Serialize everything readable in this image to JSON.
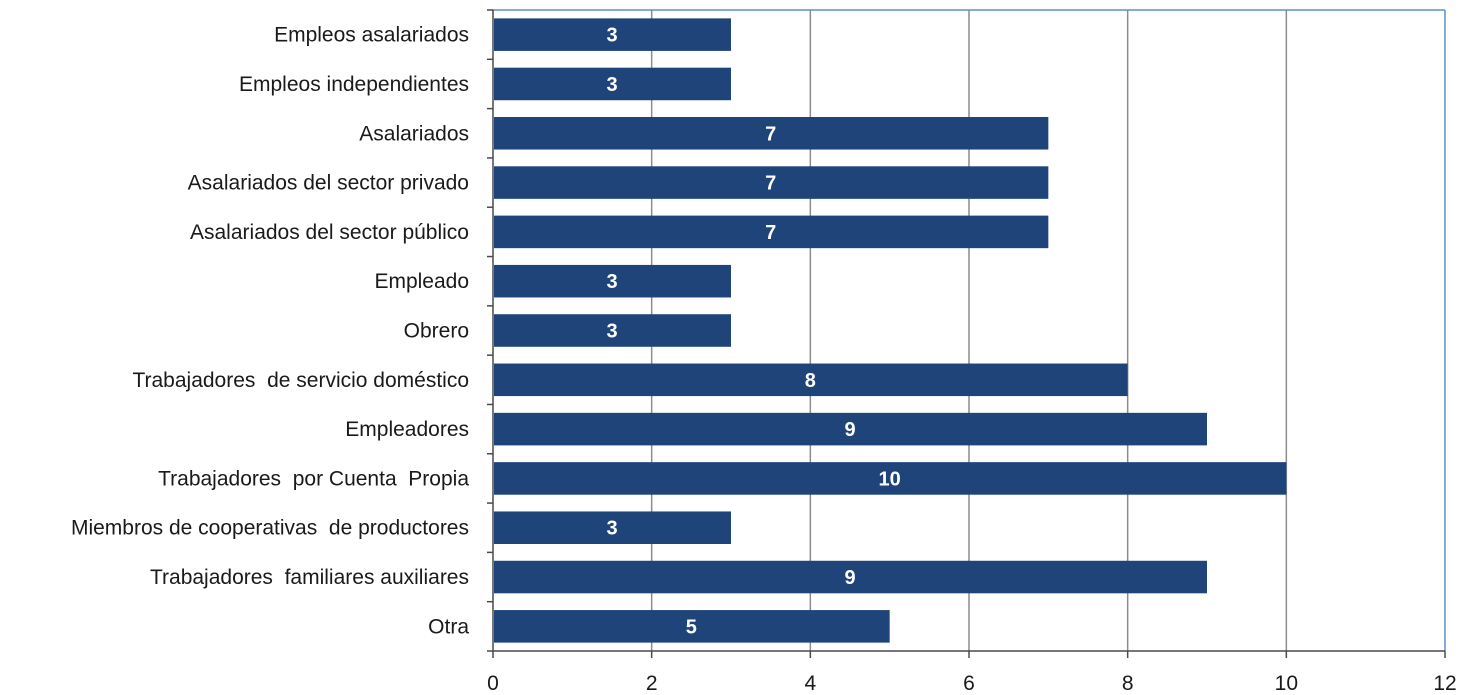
{
  "chart_data": {
    "type": "bar",
    "orientation": "horizontal",
    "categories": [
      "Empleos asalariados",
      "Empleos independientes",
      "Asalariados",
      "Asalariados del sector privado",
      "Asalariados del sector público",
      "Empleado",
      "Obrero",
      "Trabajadores  de servicio doméstico",
      "Empleadores",
      "Trabajadores  por Cuenta  Propia",
      "Miembros de cooperativas  de productores",
      "Trabajadores  familiares auxiliares",
      "Otra"
    ],
    "values": [
      3,
      3,
      7,
      7,
      7,
      3,
      3,
      8,
      9,
      10,
      3,
      9,
      5
    ],
    "xlim": [
      0,
      12
    ],
    "x_ticks": [
      0,
      2,
      4,
      6,
      8,
      10,
      12
    ],
    "data_labels": true,
    "grid": "vertical",
    "legend": "none",
    "colors": {
      "bar": "#1f4479",
      "grid": "#8c8c8c",
      "plot_border": "#5b8fd0",
      "axis": "#4a4a4a"
    }
  }
}
